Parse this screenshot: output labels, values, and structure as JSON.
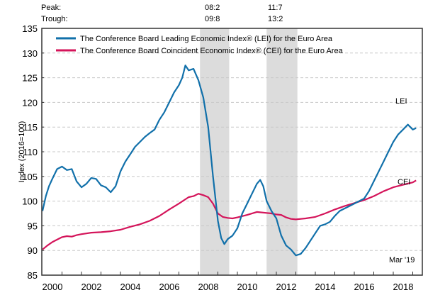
{
  "header": {
    "peak_label": "Peak:",
    "trough_label": "Trough:",
    "recessions": [
      {
        "peak": "08:2",
        "trough": "09:8"
      },
      {
        "peak": "11:7",
        "trough": "13:2"
      }
    ]
  },
  "chart_data": {
    "type": "line",
    "title": "",
    "xlabel": "",
    "ylabel": "Index (2016=100)",
    "xlim": [
      2000,
      2019.5
    ],
    "ylim": [
      85,
      135
    ],
    "yticks": [
      85,
      90,
      95,
      100,
      105,
      110,
      115,
      120,
      125,
      130,
      135
    ],
    "xticks": [
      2000,
      2002,
      2004,
      2006,
      2008,
      2010,
      2012,
      2014,
      2016,
      2018
    ],
    "xtick_labels": [
      "2000",
      "2002",
      "2004",
      "2006",
      "2008",
      "2010",
      "2012",
      "2014",
      "2016",
      "2018"
    ],
    "grid": "horizontal dashed",
    "legend_position": "top-left",
    "shaded_periods": [
      {
        "start": 2008.08,
        "end": 2009.58,
        "label": "Recession 08:2–09:8"
      },
      {
        "start": 2011.5,
        "end": 2013.08,
        "label": "Recession 11:7–13:2"
      }
    ],
    "annotations": {
      "lei_label": "LEI",
      "cei_label": "CEI",
      "date_label": "Mar '19"
    },
    "colors": {
      "lei": "#1170aa",
      "cei": "#d4145a",
      "shade": "#dcdcdc",
      "grid": "#c8c8c8",
      "axis": "#333333"
    },
    "series": [
      {
        "name": "The Conference Board Leading Economic Index® (LEI) for the Euro Area",
        "short": "LEI",
        "x": [
          2000.0,
          2000.17,
          2000.33,
          2000.5,
          2000.75,
          2001.0,
          2001.25,
          2001.5,
          2001.75,
          2002.0,
          2002.25,
          2002.5,
          2002.75,
          2003.0,
          2003.25,
          2003.5,
          2003.75,
          2004.0,
          2004.25,
          2004.5,
          2004.75,
          2005.0,
          2005.25,
          2005.5,
          2005.75,
          2006.0,
          2006.25,
          2006.5,
          2006.75,
          2007.0,
          2007.17,
          2007.33,
          2007.5,
          2007.75,
          2008.0,
          2008.25,
          2008.5,
          2008.75,
          2009.0,
          2009.17,
          2009.33,
          2009.5,
          2009.75,
          2010.0,
          2010.25,
          2010.5,
          2010.75,
          2011.0,
          2011.17,
          2011.33,
          2011.5,
          2011.75,
          2012.0,
          2012.25,
          2012.5,
          2012.75,
          2013.0,
          2013.25,
          2013.5,
          2013.75,
          2014.0,
          2014.25,
          2014.5,
          2014.75,
          2015.0,
          2015.25,
          2015.5,
          2015.75,
          2016.0,
          2016.25,
          2016.5,
          2016.75,
          2017.0,
          2017.25,
          2017.5,
          2017.75,
          2018.0,
          2018.25,
          2018.5,
          2018.75,
          2019.0,
          2019.17
        ],
        "values": [
          98.0,
          101.0,
          103.0,
          104.5,
          106.5,
          107.0,
          106.3,
          106.5,
          104.0,
          102.8,
          103.5,
          104.7,
          104.5,
          103.2,
          102.8,
          101.8,
          103.0,
          106.0,
          108.0,
          109.5,
          111.0,
          112.0,
          113.0,
          113.8,
          114.5,
          116.5,
          118.0,
          120.0,
          122.0,
          123.5,
          125.0,
          127.5,
          126.5,
          126.8,
          124.5,
          121.0,
          115.0,
          105.0,
          96.0,
          92.5,
          91.3,
          92.3,
          93.0,
          94.5,
          97.5,
          99.5,
          101.5,
          103.5,
          104.3,
          103.0,
          100.0,
          98.0,
          96.5,
          93.0,
          91.0,
          90.2,
          89.0,
          89.3,
          90.5,
          92.0,
          93.5,
          95.0,
          95.3,
          95.8,
          97.0,
          98.0,
          98.5,
          99.0,
          99.5,
          100.0,
          100.5,
          102.0,
          104.0,
          106.0,
          108.0,
          110.0,
          112.0,
          113.5,
          114.5,
          115.5,
          114.5,
          114.8
        ]
      },
      {
        "name": "The Conference Board Coincident Economic Index® (CEI) for the Euro Area",
        "short": "CEI",
        "x": [
          2000.0,
          2000.25,
          2000.5,
          2000.75,
          2001.0,
          2001.25,
          2001.5,
          2001.75,
          2002.0,
          2002.5,
          2003.0,
          2003.5,
          2004.0,
          2004.5,
          2005.0,
          2005.5,
          2006.0,
          2006.5,
          2007.0,
          2007.5,
          2007.75,
          2008.0,
          2008.25,
          2008.5,
          2008.75,
          2009.0,
          2009.25,
          2009.5,
          2009.75,
          2010.0,
          2010.5,
          2011.0,
          2011.5,
          2011.75,
          2012.0,
          2012.25,
          2012.5,
          2012.75,
          2013.0,
          2013.25,
          2013.5,
          2014.0,
          2014.5,
          2015.0,
          2015.5,
          2016.0,
          2016.5,
          2017.0,
          2017.5,
          2018.0,
          2018.5,
          2019.0,
          2019.17
        ],
        "values": [
          90.2,
          91.0,
          91.7,
          92.2,
          92.7,
          92.9,
          92.8,
          93.1,
          93.3,
          93.6,
          93.7,
          93.9,
          94.2,
          94.8,
          95.3,
          96.0,
          97.0,
          98.3,
          99.5,
          100.8,
          101.0,
          101.5,
          101.2,
          100.8,
          99.5,
          97.5,
          96.8,
          96.6,
          96.5,
          96.7,
          97.2,
          97.8,
          97.6,
          97.5,
          97.3,
          97.2,
          96.7,
          96.4,
          96.3,
          96.4,
          96.5,
          96.8,
          97.5,
          98.3,
          99.0,
          99.6,
          100.2,
          101.0,
          102.0,
          102.8,
          103.3,
          103.8,
          104.2
        ]
      }
    ]
  }
}
